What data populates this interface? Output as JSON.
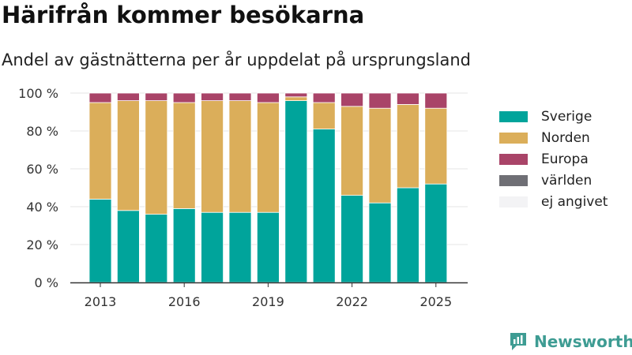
{
  "header": {
    "title": "Härifrån kommer besökarna",
    "subtitle": "Andel av gästnätterna per år uppdelat på ursprungsland"
  },
  "brand": {
    "name": "Newsworthy",
    "icon": "newsworthy-logo-icon"
  },
  "colors": {
    "Sverige": "#00a49b",
    "Norden": "#dbae5a",
    "Europa": "#a94468",
    "världen": "#6f6f75",
    "ej angivet": "#f3f3f5",
    "brand": "#3e9c93"
  },
  "chart_data": {
    "type": "bar",
    "stacked": true,
    "categories": [
      2013,
      2014,
      2015,
      2016,
      2017,
      2018,
      2019,
      2020,
      2021,
      2022,
      2023,
      2024,
      2025
    ],
    "xtick_labels": [
      "2013",
      "2016",
      "2019",
      "2022",
      "2025"
    ],
    "yticks": [
      0,
      20,
      40,
      60,
      80,
      100
    ],
    "ytick_labels": [
      "0 %",
      "20 %",
      "40 %",
      "60 %",
      "80 %",
      "100 %"
    ],
    "ylim": [
      0,
      100
    ],
    "unit": "%",
    "grid": "horizontal",
    "legend_position": "right",
    "series": [
      {
        "name": "Sverige",
        "values": [
          44,
          38,
          36,
          39,
          37,
          37,
          37,
          96,
          81,
          46,
          42,
          50,
          52
        ]
      },
      {
        "name": "Norden",
        "values": [
          51,
          58,
          60,
          56,
          59,
          59,
          58,
          2,
          14,
          47,
          50,
          44,
          40
        ]
      },
      {
        "name": "Europa",
        "values": [
          5,
          4,
          4,
          5,
          4,
          4,
          5,
          2,
          5,
          7,
          8,
          6,
          8
        ]
      },
      {
        "name": "världen",
        "values": [
          0,
          0,
          0,
          0,
          0,
          0,
          0,
          0,
          0,
          0,
          0,
          0,
          0
        ]
      },
      {
        "name": "ej angivet",
        "values": [
          0,
          0,
          0,
          0,
          0,
          0,
          0,
          0,
          0,
          0,
          0,
          0,
          0
        ]
      }
    ]
  }
}
